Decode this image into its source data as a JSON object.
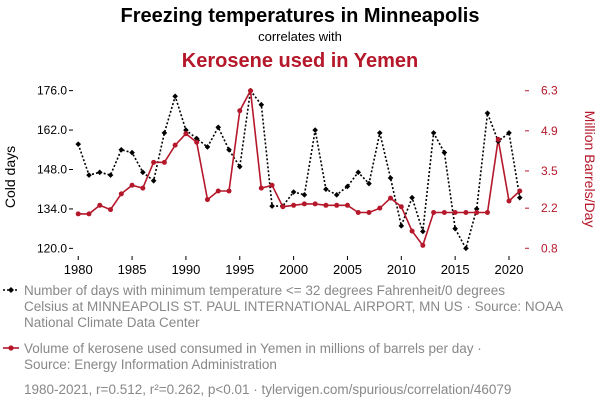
{
  "titles": {
    "title": "Freezing temperatures in Minneapolis",
    "subtitle": "correlates with",
    "title2": "Kerosene used in Yemen"
  },
  "legend": {
    "series1_lines": [
      "Number of days with minimum temperature <= 32 degrees Fahrenheit/0 degrees",
      "Celsius at MINNEAPOLIS ST. PAUL INTERNATIONAL AIRPORT, MN US · Source: NOAA",
      "National Climate Data Center"
    ],
    "series2_lines": [
      "Volume of kerosene used consumed in Yemen in millions of barrels per day ·",
      "Source: Energy Information Administration"
    ]
  },
  "footer": "1980-2021, r=0.512, r²=0.262, p<0.01 · tylervigen.com/spurious/correlation/46079",
  "colors": {
    "series1": "#000000",
    "series2": "#b5182b",
    "accent": "#b5182b",
    "muted": "#888888"
  },
  "chart_data": {
    "type": "line",
    "x": [
      1980,
      1981,
      1982,
      1983,
      1984,
      1985,
      1986,
      1987,
      1988,
      1989,
      1990,
      1991,
      1992,
      1993,
      1994,
      1995,
      1996,
      1997,
      1998,
      1999,
      2000,
      2001,
      2002,
      2003,
      2004,
      2005,
      2006,
      2007,
      2008,
      2009,
      2010,
      2011,
      2012,
      2013,
      2014,
      2015,
      2016,
      2017,
      2018,
      2019,
      2020,
      2021
    ],
    "xticks": [
      1980,
      1985,
      1990,
      1995,
      2000,
      2005,
      2010,
      2015,
      2020
    ],
    "xlim": [
      1979.7,
      2021.3
    ],
    "y_left": {
      "label": "Cold days",
      "ticks": [
        "120.0",
        "134.0",
        "148.0",
        "162.0",
        "176.0"
      ],
      "ylim": [
        118,
        178
      ]
    },
    "y_right": {
      "label": "Million Barrels/Day",
      "ticks": [
        "0.8",
        "2.2",
        "3.5",
        "4.9",
        "6.3"
      ],
      "ylim": [
        0.6,
        6.5
      ]
    },
    "series": [
      {
        "name": "Cold days",
        "axis": "left",
        "style": "dotted",
        "marker": "diamond",
        "values": [
          157,
          146,
          147,
          146,
          155,
          154,
          147,
          144,
          161,
          174,
          162,
          159,
          156,
          163,
          155,
          149,
          176,
          171,
          135,
          135,
          140,
          139,
          162,
          141,
          139,
          142,
          147,
          143,
          161,
          145,
          128,
          138,
          126,
          161,
          154,
          127,
          120,
          134,
          168,
          158,
          161,
          138
        ]
      },
      {
        "name": "Kerosene used in Yemen",
        "axis": "right",
        "style": "solid",
        "marker": "circle",
        "values": [
          2.0,
          2.0,
          2.3,
          2.15,
          2.7,
          3.0,
          2.9,
          3.8,
          3.8,
          4.4,
          4.8,
          4.5,
          2.5,
          2.8,
          2.8,
          5.6,
          6.3,
          2.9,
          3.0,
          2.25,
          2.3,
          2.35,
          2.35,
          2.3,
          2.3,
          2.3,
          2.05,
          2.05,
          2.2,
          2.55,
          2.25,
          1.4,
          0.9,
          2.05,
          2.05,
          2.05,
          2.05,
          2.05,
          2.05,
          4.6,
          2.45,
          2.8
        ]
      }
    ]
  }
}
